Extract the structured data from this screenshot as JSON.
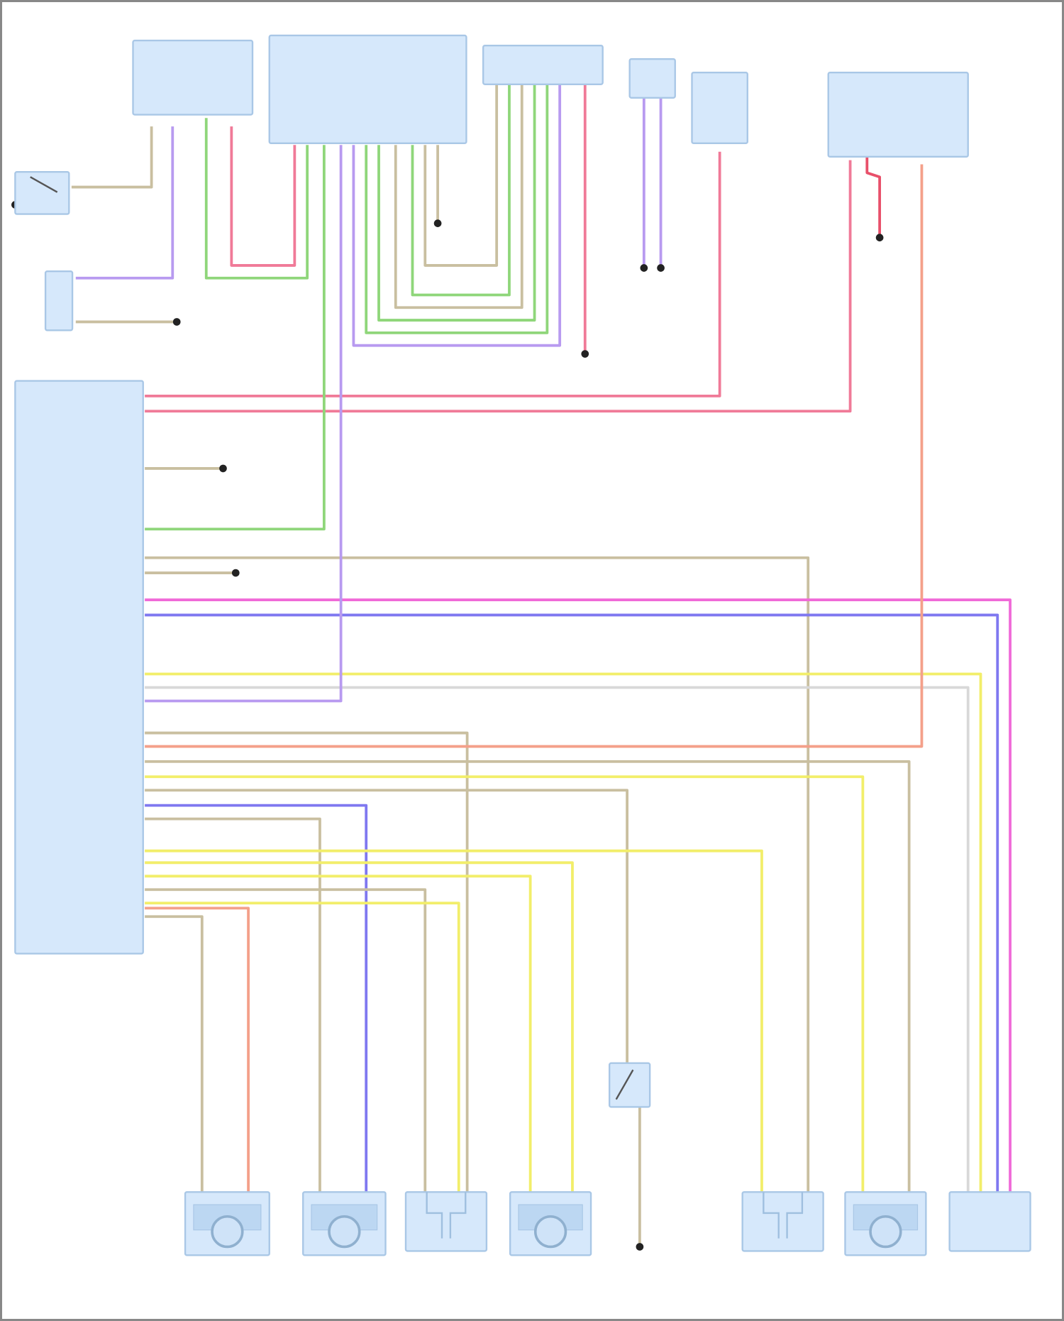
{
  "diagram": {
    "type": "wiring-diagram",
    "colors": {
      "component_fill": "#d6e8fb",
      "component_stroke": "#a9c7e6",
      "pink": "#f07a98",
      "green": "#8fd67a",
      "tan": "#c9bfa0",
      "magenta": "#f06ad8",
      "blue": "#7f78f0",
      "yellow": "#f2ee6a",
      "light_gray": "#d8d8d8",
      "lavender": "#b89af0",
      "salmon": "#f4a08a",
      "red": "#e8506a",
      "ground": "#222222"
    },
    "components": [
      {
        "id": "top-module-1",
        "icon": "connector-block"
      },
      {
        "id": "top-module-2",
        "icon": "connector-block"
      },
      {
        "id": "top-module-3",
        "icon": "connector-block"
      },
      {
        "id": "top-module-4",
        "icon": "connector-block"
      },
      {
        "id": "top-module-5",
        "icon": "relay"
      },
      {
        "id": "top-module-6",
        "icon": "relay"
      },
      {
        "id": "left-switch",
        "icon": "switch"
      },
      {
        "id": "left-sensor",
        "icon": "connector-block"
      },
      {
        "id": "control-module",
        "icon": "connector-block"
      },
      {
        "id": "mid-switch",
        "icon": "switch"
      },
      {
        "id": "actuator-1",
        "icon": "motor"
      },
      {
        "id": "actuator-2",
        "icon": "motor"
      },
      {
        "id": "actuator-3",
        "icon": "sensor"
      },
      {
        "id": "actuator-4",
        "icon": "motor"
      },
      {
        "id": "actuator-5",
        "icon": "sensor"
      },
      {
        "id": "actuator-6",
        "icon": "motor"
      },
      {
        "id": "actuator-7",
        "icon": "connector-block"
      }
    ]
  }
}
